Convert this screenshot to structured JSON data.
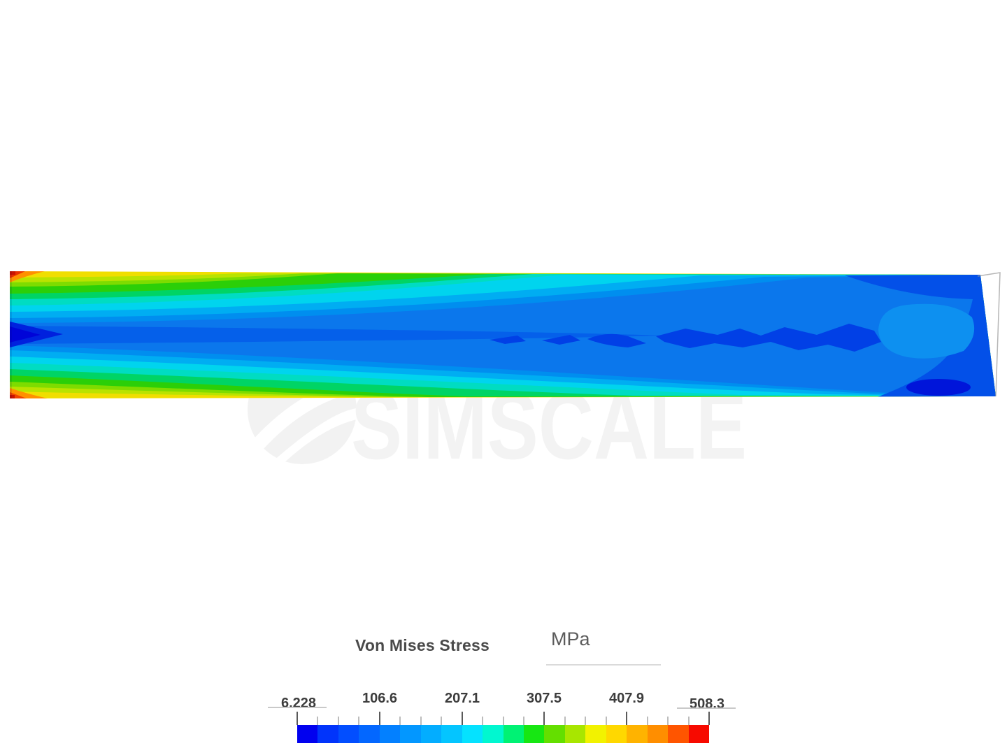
{
  "app": {
    "watermark_text": "SIMSCALE"
  },
  "legend": {
    "title": "Von Mises Stress",
    "unit": "MPa",
    "tick_labels": [
      "6.228",
      "106.6",
      "207.1",
      "307.5",
      "407.9",
      "508.3"
    ],
    "min_value": "6.228",
    "max_value": "508.3",
    "colorbar": {
      "segment_count": 20,
      "minor_ticks_per_major": 4,
      "colors": [
        "#0101EF",
        "#0134FB",
        "#024EFF",
        "#0367FF",
        "#0380FF",
        "#0397FF",
        "#03ADFF",
        "#04C5FF",
        "#05E2FF",
        "#01F7D0",
        "#00F274",
        "#17E713",
        "#64DF00",
        "#A8E600",
        "#F2F200",
        "#FFD800",
        "#FFB300",
        "#FF8E00",
        "#FF5500",
        "#F70A00"
      ]
    }
  },
  "palette": {
    "base_yellow": "#F0DE00",
    "yellow_green": "#B9E300",
    "light_green": "#7EDC00",
    "green": "#2BCF08",
    "spring_green": "#00D465",
    "teal": "#00DCC2",
    "cyan": "#00D4EE",
    "sky_blue": "#00ADF2",
    "light_blue": "#008EEF",
    "blue": "#0B77EC",
    "center_deep_blue": "#0560EA",
    "deep_blue": "#0350E8",
    "deeper_blue": "#0140E6",
    "navy": "#0021DE",
    "navy_core": "#0004D8",
    "light_patch_blue": "#0D90F0",
    "navy_blob": "#0015DA",
    "hotspot_orange": "#FF9000",
    "hotspot_red": "#E93000",
    "hotspot_red_orange": "#EF4300",
    "hotspot_red_dot": "#C81400",
    "edge_outline_gray": "#9E9E9E"
  },
  "chart_data": {
    "type": "heatmap",
    "title": "Von Mises Stress",
    "unit": "MPa",
    "scale_min": 6.228,
    "scale_max": 508.3,
    "scale_ticks": [
      6.228,
      106.6,
      207.1,
      307.5,
      407.9,
      508.3
    ],
    "legend_position": "bottom",
    "description": "FEA contour plot of a cantilever beam: maximum bending stress (yellow/orange/red) at fixed left end top and bottom fibers, low stress (blue) along neutral axis and at free right end"
  }
}
